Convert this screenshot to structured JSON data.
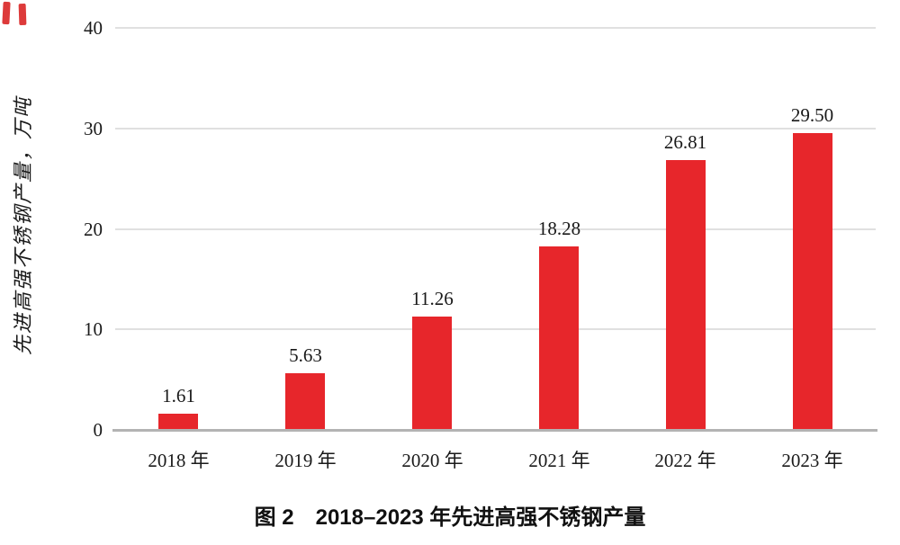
{
  "figure": {
    "caption": "图 2 2018–2023 年先进高强不锈钢产量"
  },
  "chart_data": {
    "type": "bar",
    "title": "",
    "xlabel": "",
    "ylabel": "先进高强不锈钢产量，万吨",
    "categories": [
      "2018 年",
      "2019 年",
      "2020 年",
      "2021 年",
      "2022 年",
      "2023 年"
    ],
    "values": [
      1.61,
      5.63,
      11.26,
      18.28,
      26.81,
      29.5
    ],
    "value_labels": [
      "1.61",
      "5.63",
      "11.26",
      "18.28",
      "26.81",
      "29.50"
    ],
    "ylim": [
      0,
      40
    ],
    "yticks": [
      0,
      10,
      20,
      30,
      40
    ],
    "grid": "horizontal-light",
    "legend_position": "none",
    "colors": {
      "bar": "#e7262b",
      "gridline": "#e0e0e0",
      "axis_line": "#b3b3b3",
      "tick_label": "#1a1a1a",
      "value_label": "#191919",
      "caption": "#111111",
      "corner_marks": "#dd3a3a"
    }
  }
}
